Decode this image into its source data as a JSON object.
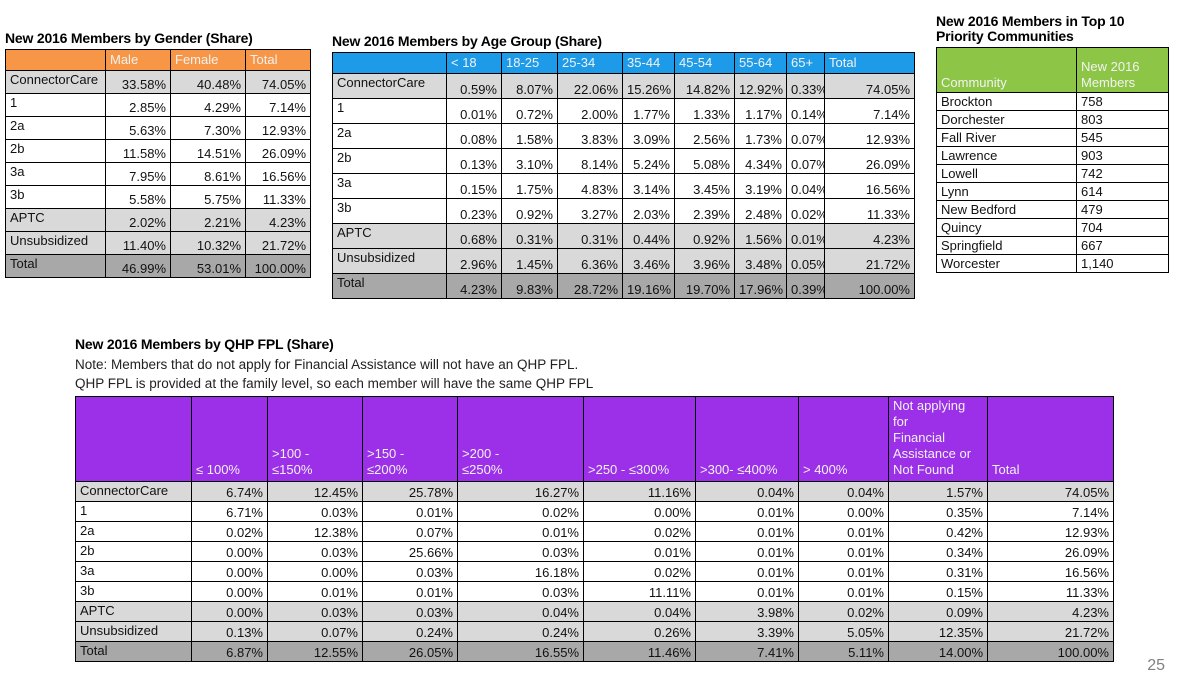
{
  "page_number": "25",
  "colors": {
    "orange": "#F79646",
    "blue": "#1E9BE8",
    "green": "#8DC646",
    "purple": "#9B30E8",
    "row_gray": "#D9D9D9",
    "total_row_gray": "#A8A8A8"
  },
  "gender_table": {
    "title": "New 2016 Members by Gender (Share)",
    "columns": [
      "",
      "Male",
      "Female",
      "Total"
    ],
    "rows": [
      {
        "label": "ConnectorCare",
        "shade": "gray",
        "values": [
          "33.58%",
          "40.48%",
          "74.05%"
        ]
      },
      {
        "label": "1",
        "shade": "white",
        "values": [
          "2.85%",
          "4.29%",
          "7.14%"
        ]
      },
      {
        "label": "2a",
        "shade": "white",
        "values": [
          "5.63%",
          "7.30%",
          "12.93%"
        ]
      },
      {
        "label": "2b",
        "shade": "white",
        "values": [
          "11.58%",
          "14.51%",
          "26.09%"
        ]
      },
      {
        "label": "3a",
        "shade": "white",
        "values": [
          "7.95%",
          "8.61%",
          "16.56%"
        ]
      },
      {
        "label": "3b",
        "shade": "white",
        "values": [
          "5.58%",
          "5.75%",
          "11.33%"
        ]
      },
      {
        "label": "APTC",
        "shade": "gray",
        "values": [
          "2.02%",
          "2.21%",
          "4.23%"
        ]
      },
      {
        "label": "Unsubsidized",
        "shade": "gray",
        "values": [
          "11.40%",
          "10.32%",
          "21.72%"
        ]
      },
      {
        "label": "Total",
        "shade": "total",
        "values": [
          "46.99%",
          "53.01%",
          "100.00%"
        ]
      }
    ]
  },
  "age_table": {
    "title": "New 2016 Members by Age Group (Share)",
    "columns": [
      "",
      "< 18",
      "18-25",
      "25-34",
      "35-44",
      "45-54",
      "55-64",
      "65+",
      "Total"
    ],
    "rows": [
      {
        "label": "ConnectorCare",
        "shade": "gray",
        "values": [
          "0.59%",
          "8.07%",
          "22.06%",
          "15.26%",
          "14.82%",
          "12.92%",
          "0.33%",
          "74.05%"
        ]
      },
      {
        "label": "1",
        "shade": "white",
        "values": [
          "0.01%",
          "0.72%",
          "2.00%",
          "1.77%",
          "1.33%",
          "1.17%",
          "0.14%",
          "7.14%"
        ]
      },
      {
        "label": "2a",
        "shade": "white",
        "values": [
          "0.08%",
          "1.58%",
          "3.83%",
          "3.09%",
          "2.56%",
          "1.73%",
          "0.07%",
          "12.93%"
        ]
      },
      {
        "label": "2b",
        "shade": "white",
        "values": [
          "0.13%",
          "3.10%",
          "8.14%",
          "5.24%",
          "5.08%",
          "4.34%",
          "0.07%",
          "26.09%"
        ]
      },
      {
        "label": "3a",
        "shade": "white",
        "values": [
          "0.15%",
          "1.75%",
          "4.83%",
          "3.14%",
          "3.45%",
          "3.19%",
          "0.04%",
          "16.56%"
        ]
      },
      {
        "label": "3b",
        "shade": "white",
        "values": [
          "0.23%",
          "0.92%",
          "3.27%",
          "2.03%",
          "2.39%",
          "2.48%",
          "0.02%",
          "11.33%"
        ]
      },
      {
        "label": "APTC",
        "shade": "gray",
        "values": [
          "0.68%",
          "0.31%",
          "0.31%",
          "0.44%",
          "0.92%",
          "1.56%",
          "0.01%",
          "4.23%"
        ]
      },
      {
        "label": "Unsubsidized",
        "shade": "gray",
        "values": [
          "2.96%",
          "1.45%",
          "6.36%",
          "3.46%",
          "3.96%",
          "3.48%",
          "0.05%",
          "21.72%"
        ]
      },
      {
        "label": "Total",
        "shade": "total",
        "values": [
          "4.23%",
          "9.83%",
          "28.72%",
          "19.16%",
          "19.70%",
          "17.96%",
          "0.39%",
          "100.00%"
        ]
      }
    ]
  },
  "communities_table": {
    "title": "New 2016 Members in Top 10 Priority Communities",
    "columns": [
      "Community",
      "New 2016 Members"
    ],
    "rows": [
      {
        "label": "Brockton",
        "shade": "white",
        "values": [
          "758"
        ]
      },
      {
        "label": "Dorchester",
        "shade": "white",
        "values": [
          "803"
        ]
      },
      {
        "label": "Fall River",
        "shade": "white",
        "values": [
          "545"
        ]
      },
      {
        "label": "Lawrence",
        "shade": "white",
        "values": [
          "903"
        ]
      },
      {
        "label": "Lowell",
        "shade": "white",
        "values": [
          "742"
        ]
      },
      {
        "label": "Lynn",
        "shade": "white",
        "values": [
          "614"
        ]
      },
      {
        "label": "New Bedford",
        "shade": "white",
        "values": [
          "479"
        ]
      },
      {
        "label": "Quincy",
        "shade": "white",
        "values": [
          "704"
        ]
      },
      {
        "label": "Springfield",
        "shade": "white",
        "values": [
          "667"
        ]
      },
      {
        "label": "Worcester",
        "shade": "white",
        "values": [
          "1,140"
        ]
      }
    ]
  },
  "fpl_table": {
    "title": "New 2016 Members by QHP FPL (Share)",
    "notes": [
      "Note: Members that do not apply for Financial Assistance will not have an QHP FPL.",
      "QHP FPL is provided at the family level, so each member will have the same QHP FPL"
    ],
    "columns": [
      "",
      "≤ 100%",
      ">100 -\n≤150%",
      ">150 -\n≤200%",
      ">200 -\n≤250%",
      ">250 - ≤300%",
      ">300- ≤400%",
      "> 400%",
      "Not applying for\nFinancial\nAssistance or\nNot Found",
      "Total"
    ],
    "rows": [
      {
        "label": "ConnectorCare",
        "shade": "gray",
        "values": [
          "6.74%",
          "12.45%",
          "25.78%",
          "16.27%",
          "11.16%",
          "0.04%",
          "0.04%",
          "1.57%",
          "74.05%"
        ]
      },
      {
        "label": "1",
        "shade": "white",
        "values": [
          "6.71%",
          "0.03%",
          "0.01%",
          "0.02%",
          "0.00%",
          "0.01%",
          "0.00%",
          "0.35%",
          "7.14%"
        ]
      },
      {
        "label": "2a",
        "shade": "white",
        "values": [
          "0.02%",
          "12.38%",
          "0.07%",
          "0.01%",
          "0.02%",
          "0.01%",
          "0.01%",
          "0.42%",
          "12.93%"
        ]
      },
      {
        "label": "2b",
        "shade": "white",
        "values": [
          "0.00%",
          "0.03%",
          "25.66%",
          "0.03%",
          "0.01%",
          "0.01%",
          "0.01%",
          "0.34%",
          "26.09%"
        ]
      },
      {
        "label": "3a",
        "shade": "white",
        "values": [
          "0.00%",
          "0.00%",
          "0.03%",
          "16.18%",
          "0.02%",
          "0.01%",
          "0.01%",
          "0.31%",
          "16.56%"
        ]
      },
      {
        "label": "3b",
        "shade": "white",
        "values": [
          "0.00%",
          "0.01%",
          "0.01%",
          "0.03%",
          "11.11%",
          "0.01%",
          "0.01%",
          "0.15%",
          "11.33%"
        ]
      },
      {
        "label": "APTC",
        "shade": "gray",
        "values": [
          "0.00%",
          "0.03%",
          "0.03%",
          "0.04%",
          "0.04%",
          "3.98%",
          "0.02%",
          "0.09%",
          "4.23%"
        ]
      },
      {
        "label": "Unsubsidized",
        "shade": "gray",
        "values": [
          "0.13%",
          "0.07%",
          "0.24%",
          "0.24%",
          "0.26%",
          "3.39%",
          "5.05%",
          "12.35%",
          "21.72%"
        ]
      },
      {
        "label": "Total",
        "shade": "total",
        "values": [
          "6.87%",
          "12.55%",
          "26.05%",
          "16.55%",
          "11.46%",
          "7.41%",
          "5.11%",
          "14.00%",
          "100.00%"
        ]
      }
    ]
  }
}
